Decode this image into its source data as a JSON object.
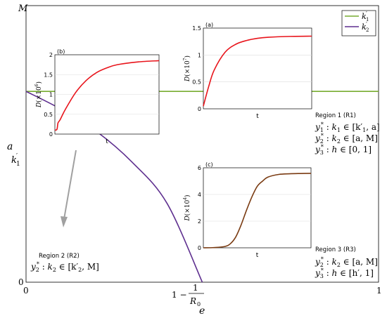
{
  "main": {
    "xlabel": "e",
    "ylabel": "a",
    "x_tick_labels": {
      "left": "0",
      "mid_prefix": "1 −",
      "mid_num": "1",
      "mid_den": "R",
      "mid_den_sub": "0",
      "right": "1"
    },
    "y_tick_labels": {
      "bottom": "0",
      "mid": "k",
      "mid_sub": "1",
      "mid_prime": "′",
      "top": "M"
    },
    "legend": [
      {
        "base": "k",
        "sub": "1",
        "prime": "′",
        "color": "#77ac30"
      },
      {
        "base": "k",
        "sub": "2",
        "prime": "′",
        "color": "#5e2f8f"
      }
    ],
    "colors": {
      "k1_line": "#77ac30",
      "k2_curve": "#5e2f8f",
      "arrow": "#a0a0a0",
      "red": "#e8141b",
      "brown": "#7a3b12"
    }
  },
  "regions": {
    "r1": {
      "title": "Region 1 (R1)",
      "lines": [
        {
          "y": "y",
          "sub": "1",
          "rest": ": k",
          "rsub": "1",
          "range": "∈ [k′",
          "rsub2": "1",
          "end": ", a]"
        },
        {
          "y": "y",
          "sub": "2",
          "rest": ": k",
          "rsub": "2",
          "range": "∈ [a, M]",
          "rsub2": "",
          "end": ""
        },
        {
          "y": "y",
          "sub": "3",
          "rest": ": h",
          "rsub": "",
          "range": "∈ [0, 1]",
          "rsub2": "",
          "end": ""
        }
      ]
    },
    "r2": {
      "title": "Region 2 (R2)",
      "lines": [
        {
          "y": "y",
          "sub": "2",
          "rest": ": k",
          "rsub": "2",
          "range": "∈ [k′",
          "rsub2": "2",
          "end": ", M]"
        }
      ]
    },
    "r3": {
      "title": "Region 3 (R3)",
      "lines": [
        {
          "y": "y",
          "sub": "2",
          "rest": ": k",
          "rsub": "2",
          "range": "∈ [a, M]",
          "rsub2": "",
          "end": ""
        },
        {
          "y": "y",
          "sub": "3",
          "rest": ": h",
          "rsub": "",
          "range": "∈ [h′, 1]",
          "rsub2": "",
          "end": ""
        }
      ]
    }
  },
  "chart_data": [
    {
      "type": "line",
      "xlim": [
        0,
        1
      ],
      "ylim": [
        0,
        1
      ],
      "series": [
        {
          "name": "k′1",
          "x": [
            0,
            1
          ],
          "y": [
            0.69,
            0.69
          ]
        },
        {
          "name": "k′2",
          "x": [
            0,
            0.1,
            0.2,
            0.3,
            0.4,
            0.5
          ],
          "y": [
            0.69,
            0.625,
            0.545,
            0.435,
            0.285,
            0.0
          ]
        }
      ]
    },
    {
      "panel": "(a)",
      "type": "line",
      "xlabel": "t",
      "ylabel_base": "D",
      "ylabel_exp": "7",
      "ylim": [
        0,
        1.5
      ],
      "yticks": [
        "0",
        "0.5",
        "1",
        "1.5"
      ],
      "series": [
        {
          "x": [
            0,
            0.05,
            0.1,
            0.2,
            0.3,
            0.4,
            0.5,
            0.6,
            0.8,
            1.0
          ],
          "y": [
            0.05,
            0.42,
            0.72,
            1.05,
            1.2,
            1.27,
            1.31,
            1.33,
            1.345,
            1.35
          ]
        }
      ]
    },
    {
      "panel": "(b)",
      "type": "line",
      "xlabel": "t",
      "ylabel_base": "D",
      "ylabel_exp": "6",
      "ylim": [
        0,
        2
      ],
      "yticks": [
        "0",
        "0.5",
        "1",
        "1.5",
        "2"
      ],
      "series": [
        {
          "x": [
            0,
            0.02,
            0.03,
            0.05,
            0.1,
            0.2,
            0.3,
            0.4,
            0.5,
            0.6,
            0.8,
            1.0
          ],
          "y": [
            0.1,
            0.12,
            0.28,
            0.36,
            0.62,
            1.05,
            1.35,
            1.55,
            1.67,
            1.75,
            1.82,
            1.85
          ]
        }
      ]
    },
    {
      "panel": "(c)",
      "type": "line",
      "xlabel": "t",
      "ylabel_base": "D",
      "ylabel_exp": "4",
      "ylim": [
        0,
        6
      ],
      "yticks": [
        "0",
        "2",
        "4",
        "6"
      ],
      "series": [
        {
          "x": [
            0,
            0.1,
            0.2,
            0.25,
            0.3,
            0.35,
            0.4,
            0.45,
            0.5,
            0.55,
            0.6,
            0.7,
            0.8,
            0.9,
            1.0
          ],
          "y": [
            0,
            0.02,
            0.1,
            0.3,
            0.8,
            1.7,
            2.8,
            3.8,
            4.6,
            5.0,
            5.3,
            5.5,
            5.55,
            5.57,
            5.58
          ]
        }
      ]
    }
  ]
}
